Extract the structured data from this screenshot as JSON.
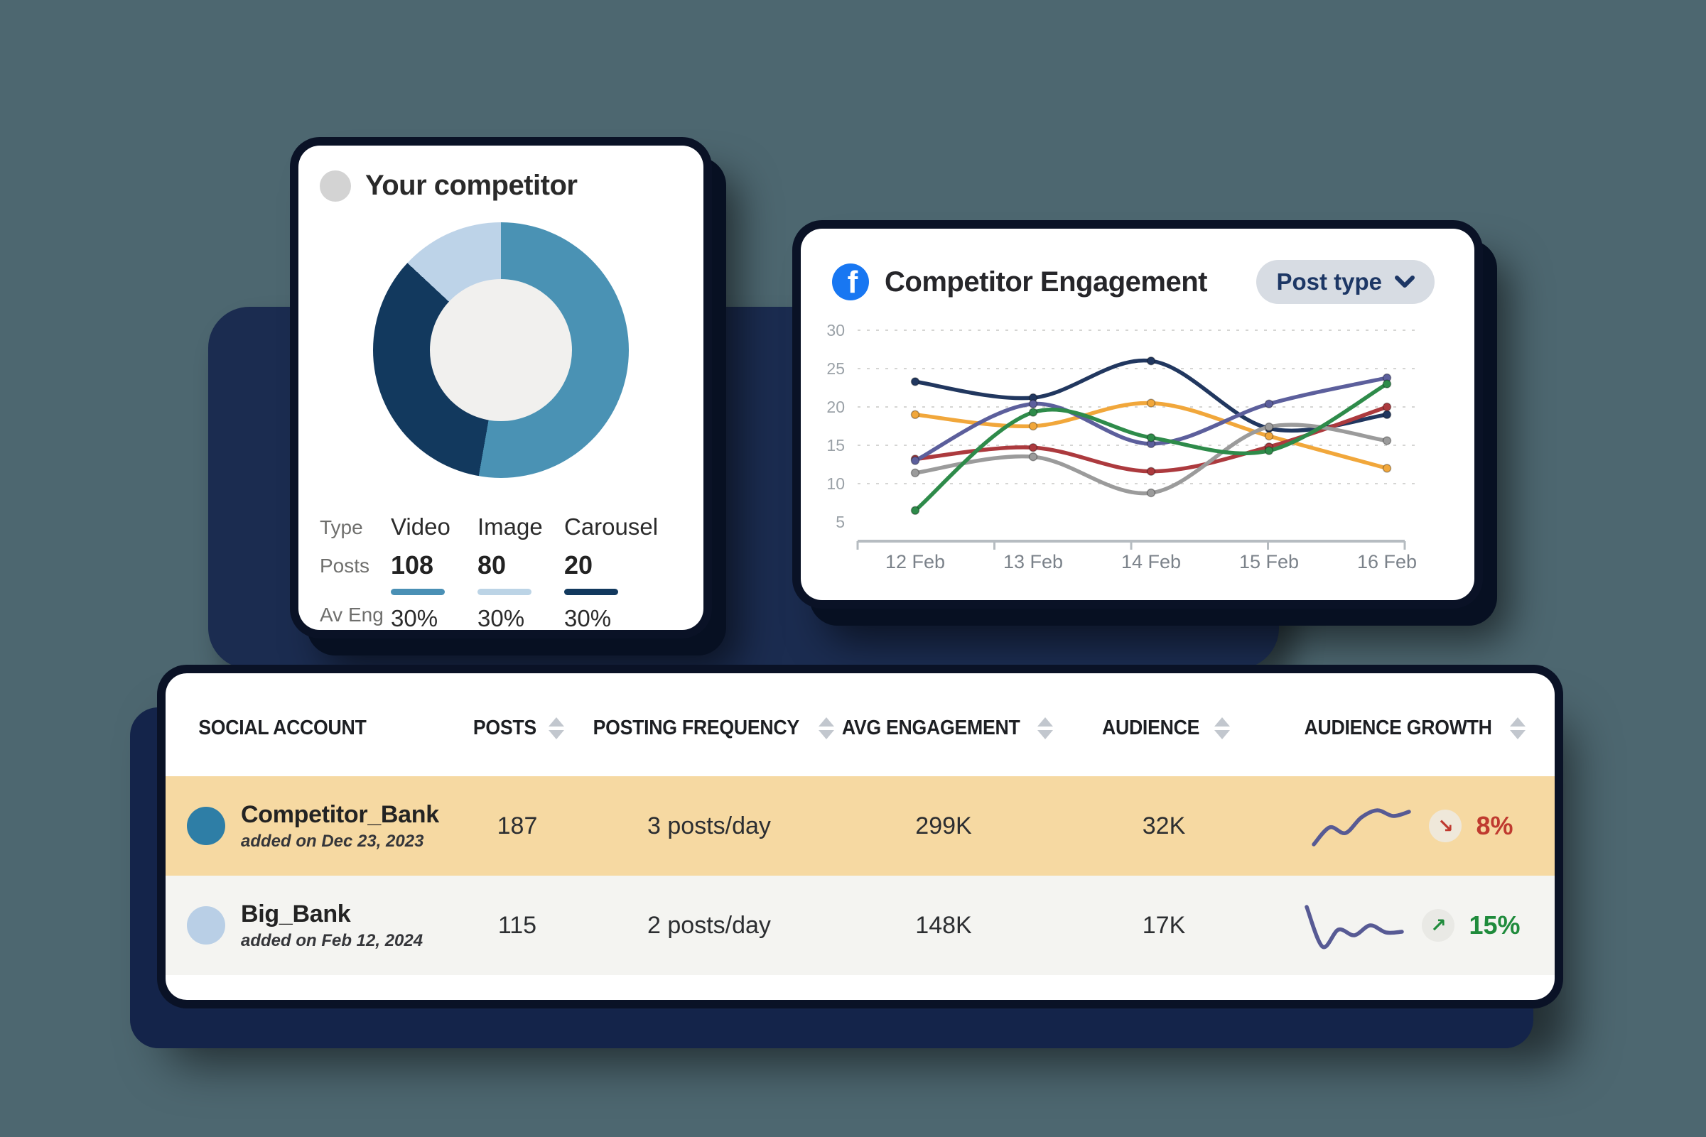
{
  "page": {
    "background": "#4d6770",
    "backdrop_color": "#1b2c50"
  },
  "chart_data": [
    {
      "type": "pie",
      "title": "Your competitor",
      "donut": true,
      "hole_color": "#f1f0ee",
      "segments": [
        {
          "label": "Video",
          "posts": 108,
          "avg_engagement": "30%",
          "color": "#4a92b4",
          "sweep_deg": 190
        },
        {
          "label": "Carousel",
          "posts": 20,
          "avg_engagement": "30%",
          "color": "#12395e",
          "sweep_deg": 123
        },
        {
          "label": "Image",
          "posts": 80,
          "avg_engagement": "30%",
          "color": "#bdd3e8",
          "sweep_deg": 47
        }
      ]
    },
    {
      "type": "line",
      "title": "Competitor Engagement",
      "x": [
        "12 Feb",
        "13 Feb",
        "14 Feb",
        "15 Feb",
        "16 Feb"
      ],
      "y_ticks": [
        30,
        25,
        20,
        15,
        10,
        5
      ],
      "gridlines": [
        30,
        25,
        20,
        15,
        10
      ],
      "ylim": [
        2,
        32
      ],
      "legend": "none",
      "series": [
        {
          "name": "series-navy",
          "color": "#21375f",
          "values": [
            23.3,
            21.2,
            26,
            17.2,
            19
          ]
        },
        {
          "name": "series-orange",
          "color": "#f1a73b",
          "values": [
            19,
            17.5,
            20.5,
            16.2,
            12
          ]
        },
        {
          "name": "series-red",
          "color": "#ac3a3e",
          "values": [
            13.2,
            14.7,
            11.6,
            14.8,
            20
          ]
        },
        {
          "name": "series-gray",
          "color": "#9b9b9b",
          "values": [
            11.4,
            13.5,
            8.8,
            17.4,
            15.6
          ]
        },
        {
          "name": "series-purple",
          "color": "#5c5f9c",
          "values": [
            13,
            20.4,
            15.2,
            20.4,
            23.8
          ]
        },
        {
          "name": "series-green",
          "color": "#2e8b4a",
          "values": [
            6.5,
            19.3,
            16,
            14.3,
            23
          ]
        }
      ]
    }
  ],
  "competitor_card": {
    "title": "Your competitor",
    "stats": {
      "row_labels": [
        "Type",
        "Posts",
        "Av Eng"
      ],
      "columns": [
        {
          "type": "Video",
          "posts": "108",
          "avg_eng": "30%",
          "bar_color": "#4a90b5"
        },
        {
          "type": "Image",
          "posts": "80",
          "avg_eng": "30%",
          "bar_color": "#bcd4e6"
        },
        {
          "type": "Carousel",
          "posts": "20",
          "avg_eng": "30%",
          "bar_color": "#12395e"
        }
      ]
    }
  },
  "engagement_card": {
    "title": "Competitor Engagement",
    "platform": "facebook",
    "fb_glyph": "f",
    "fb_color": "#1877f2",
    "dropdown": {
      "label": "Post type"
    }
  },
  "table": {
    "columns": [
      {
        "label": "SOCIAL ACCOUNT",
        "sortable": false
      },
      {
        "label": "POSTS",
        "sortable": true
      },
      {
        "label": "POSTING FREQUENCY",
        "sortable": true
      },
      {
        "label": "AVG ENGAGEMENT",
        "sortable": true
      },
      {
        "label": "AUDIENCE",
        "sortable": true
      },
      {
        "label": "AUDIENCE GROWTH",
        "sortable": true
      }
    ],
    "rows": [
      {
        "name": "Competitor_Bank",
        "added": "added on Dec 23, 2023",
        "avatar_color": "#2e7ea6",
        "row_bg": "#f6d9a2",
        "posts": "187",
        "frequency": "3 posts/day",
        "avg_engagement": "299K",
        "audience": "32K",
        "growth": {
          "direction": "down",
          "arrow": "↘",
          "pct": "8%",
          "color": "#bf3a2f",
          "badge_bg": "#efe8da",
          "sparkline": [
            10,
            34,
            26,
            48,
            58,
            50,
            56
          ],
          "spark_color": "#575a94"
        }
      },
      {
        "name": "Big_Bank",
        "added": "added on Feb 12, 2024",
        "avatar_color": "#b9cfe6",
        "row_bg": "#f4f4f1",
        "posts": "115",
        "frequency": "2 posts/day",
        "avg_engagement": "148K",
        "audience": "17K",
        "growth": {
          "direction": "up",
          "arrow": "↗",
          "pct": "15%",
          "color": "#1f8b3c",
          "badge_bg": "#e9e9e5",
          "sparkline": [
            62,
            6,
            30,
            22,
            36,
            26,
            27
          ],
          "spark_color": "#575a94"
        }
      }
    ]
  }
}
